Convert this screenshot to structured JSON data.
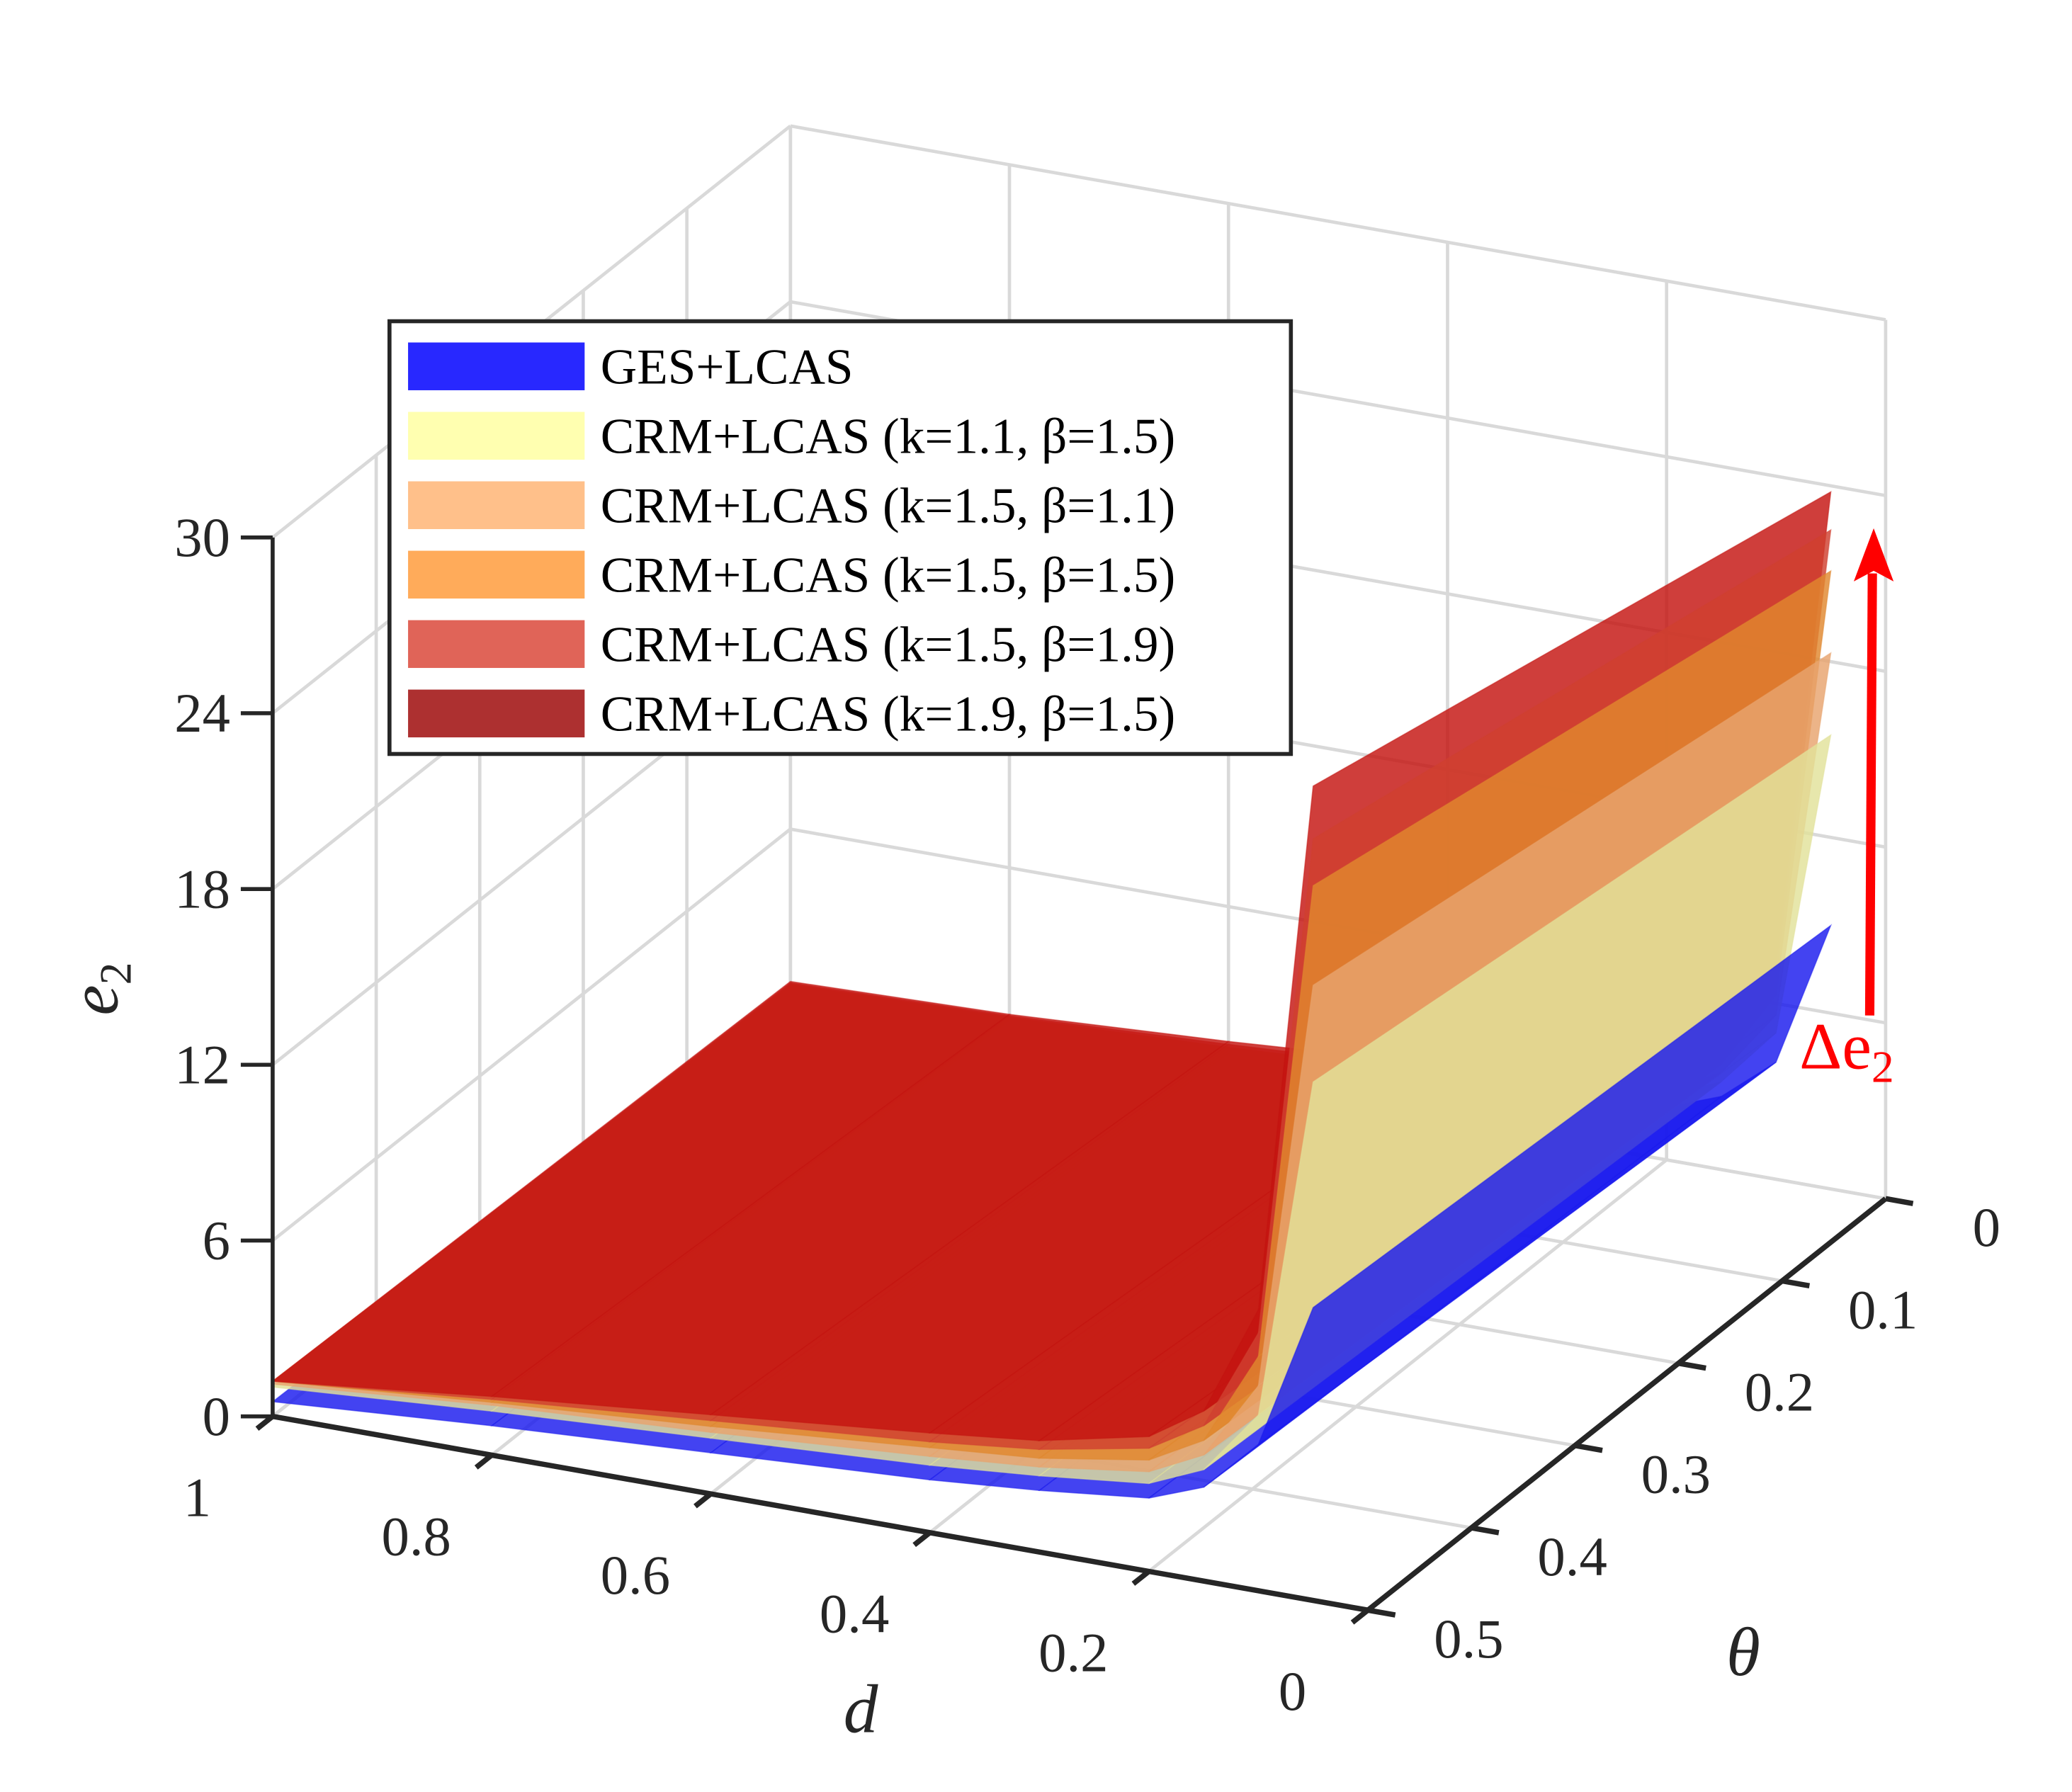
{
  "chart_data": {
    "type": "surface",
    "xlabel": "d",
    "ylabel": "θ",
    "zlabel": "e",
    "zlabel_sub": "2",
    "xlim": [
      0,
      1
    ],
    "ylim": [
      0,
      0.5
    ],
    "zlim": [
      0,
      30
    ],
    "grid": true,
    "legend_position": "top-left",
    "xticks": [
      {
        "v": 1,
        "label": "1"
      },
      {
        "v": 0.8,
        "label": "0.8"
      },
      {
        "v": 0.6,
        "label": "0.6"
      },
      {
        "v": 0.4,
        "label": "0.4"
      },
      {
        "v": 0.2,
        "label": "0.2"
      },
      {
        "v": 0,
        "label": "0"
      }
    ],
    "yticks": [
      {
        "v": 0,
        "label": "0"
      },
      {
        "v": 0.1,
        "label": "0.1"
      },
      {
        "v": 0.2,
        "label": "0.2"
      },
      {
        "v": 0.3,
        "label": "0.3"
      },
      {
        "v": 0.4,
        "label": "0.4"
      },
      {
        "v": 0.5,
        "label": "0.5"
      }
    ],
    "zticks": [
      {
        "v": 0,
        "label": "0"
      },
      {
        "v": 6,
        "label": "6"
      },
      {
        "v": 12,
        "label": "12"
      },
      {
        "v": 18,
        "label": "18"
      },
      {
        "v": 24,
        "label": "24"
      },
      {
        "v": 30,
        "label": "30"
      }
    ],
    "d": [
      0.05,
      0.1,
      0.15,
      0.2,
      0.3,
      0.4,
      0.6,
      0.8,
      1.0
    ],
    "theta": [
      0,
      0.5
    ],
    "series": [
      {
        "name": "GES+LCAS",
        "color": "#2828ff",
        "face_color": "#1a1aee",
        "z": [
          [
            9.0,
            4.0,
            2.5,
            1.8,
            1.3,
            1.0,
            0.6,
            0.3,
            0.2
          ],
          [
            10.0,
            5.0,
            3.2,
            2.5,
            2.1,
            1.8,
            1.4,
            1.0,
            0.5
          ]
        ]
      },
      {
        "name": "CRM+LCAS (k=1.1, β=1.5)",
        "color": "#ffffb0",
        "face_color": "#e2e29a",
        "z": [
          [
            15.5,
            5.0,
            3.0,
            2.2,
            1.6,
            1.3,
            1.0,
            0.8,
            0.6
          ],
          [
            17.7,
            6.0,
            3.8,
            3.0,
            2.6,
            2.3,
            1.9,
            1.5,
            1.0
          ]
        ]
      },
      {
        "name": "CRM+LCAS (k=1.5, β=1.1)",
        "color": "#ffc08a",
        "face_color": "#e8a46e",
        "z": [
          [
            18.3,
            5.6,
            3.3,
            2.4,
            1.8,
            1.5,
            1.1,
            0.85,
            0.65
          ],
          [
            21.0,
            7.0,
            4.3,
            3.4,
            2.9,
            2.6,
            2.1,
            1.7,
            1.1
          ]
        ]
      },
      {
        "name": "CRM+LCAS (k=1.5, β=1.5)",
        "color": "#ffab5a",
        "face_color": "#e0882e",
        "z": [
          [
            21.1,
            6.3,
            3.6,
            2.6,
            2.0,
            1.6,
            1.2,
            0.9,
            0.7
          ],
          [
            24.4,
            8.0,
            4.8,
            3.8,
            3.2,
            2.9,
            2.3,
            1.8,
            1.2
          ]
        ]
      },
      {
        "name": "CRM+LCAS (k=1.5, β=1.9)",
        "color": "#e06458",
        "face_color": "#d04030",
        "z": [
          [
            22.5,
            6.8,
            3.9,
            2.8,
            2.1,
            1.7,
            1.3,
            0.95,
            0.75
          ],
          [
            26.0,
            8.8,
            5.3,
            4.2,
            3.5,
            3.1,
            2.5,
            1.9,
            1.2
          ]
        ]
      },
      {
        "name": "CRM+LCAS (k=1.9, β=1.5)",
        "color": "#ad3030",
        "face_color": "#c41410",
        "z": [
          [
            23.8,
            7.3,
            4.2,
            3.0,
            2.3,
            1.9,
            1.4,
            1.0,
            0.8
          ],
          [
            27.8,
            9.6,
            5.8,
            4.6,
            3.8,
            3.4,
            2.7,
            2.0,
            1.2
          ]
        ]
      }
    ],
    "annotation": {
      "text": "Δe",
      "sub": "2",
      "color": "#ff0000"
    }
  }
}
